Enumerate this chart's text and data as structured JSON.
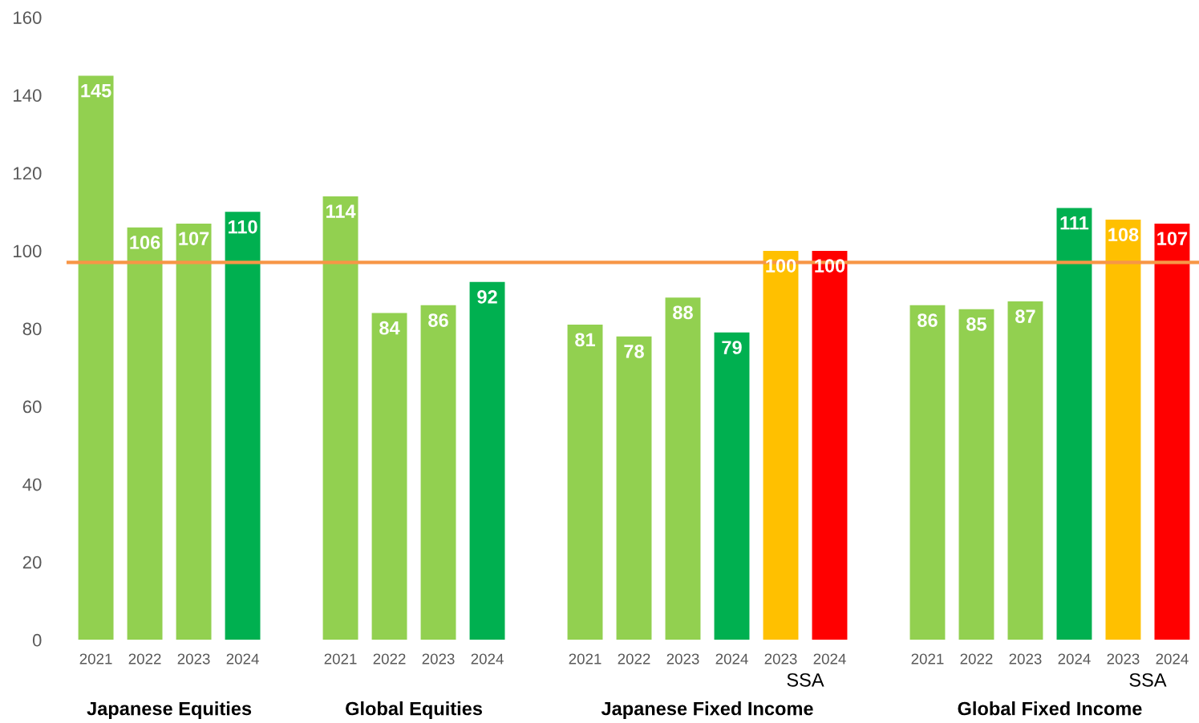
{
  "chart_data": {
    "type": "bar",
    "categories": [
      "2021",
      "2022",
      "2023",
      "2024",
      null,
      "2021",
      "2022",
      "2023",
      "2024",
      null,
      "2021",
      "2022",
      "2023",
      "2024",
      "2023",
      "2024",
      null,
      "2021",
      "2022",
      "2023",
      "2024",
      "2023",
      "2024"
    ],
    "values": [
      145,
      106,
      107,
      110,
      null,
      114,
      84,
      86,
      92,
      null,
      81,
      78,
      88,
      79,
      100,
      100,
      null,
      86,
      85,
      87,
      111,
      108,
      107
    ],
    "colors": [
      "#92d050",
      "#92d050",
      "#92d050",
      "#00b050",
      null,
      "#92d050",
      "#92d050",
      "#92d050",
      "#00b050",
      null,
      "#92d050",
      "#92d050",
      "#92d050",
      "#00b050",
      "#ffc000",
      "#ff0000",
      null,
      "#92d050",
      "#92d050",
      "#92d050",
      "#00b050",
      "#ffc000",
      "#ff0000"
    ],
    "data_labels": true,
    "ylim": [
      0,
      160
    ],
    "yticks": [
      0,
      20,
      40,
      60,
      80,
      100,
      120,
      140,
      160
    ],
    "grid": false,
    "ref_lines": [
      {
        "axis": "y",
        "value": 97,
        "color": "#f79646"
      }
    ],
    "annotations": [
      "Japanese Equities",
      "Global Equities",
      "Japanese Fixed Income",
      "Global Fixed Income",
      "SSA",
      "SSA"
    ]
  }
}
